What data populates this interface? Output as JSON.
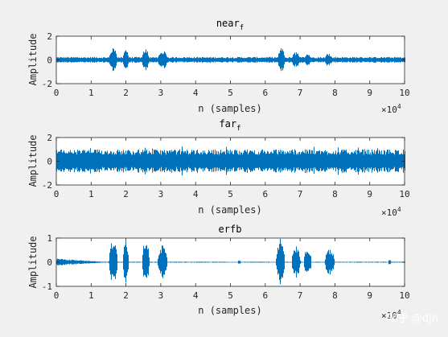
{
  "chart_data": [
    {
      "type": "line",
      "title": "near",
      "title_subscript": "f",
      "xlabel": "n (samples)",
      "ylabel": "Amplitude",
      "xlim": [
        0,
        100000
      ],
      "ylim": [
        -2,
        2
      ],
      "xticks": [
        0,
        1,
        2,
        3,
        4,
        5,
        6,
        7,
        8,
        9,
        10
      ],
      "yticks": [
        -2,
        0,
        2
      ],
      "x_exponent_base": "×10",
      "x_exponent": "4",
      "grid": false,
      "color": "#0072bd",
      "series": [
        {
          "baseline_amplitude": 0.25,
          "bursts": [
            {
              "start": 15000,
              "end": 18500,
              "peak": 1.0
            },
            {
              "start": 19000,
              "end": 21500,
              "peak": 0.9
            },
            {
              "start": 24500,
              "end": 27500,
              "peak": 1.0
            },
            {
              "start": 29000,
              "end": 33000,
              "peak": 0.8
            },
            {
              "start": 63500,
              "end": 66500,
              "peak": 1.0
            },
            {
              "start": 67500,
              "end": 71000,
              "peak": 0.7
            },
            {
              "start": 71000,
              "end": 74000,
              "peak": 0.6
            },
            {
              "start": 77000,
              "end": 80000,
              "peak": 0.6
            }
          ]
        }
      ]
    },
    {
      "type": "line",
      "title": "far",
      "title_subscript": "f",
      "xlabel": "n (samples)",
      "ylabel": "Amplitude",
      "xlim": [
        0,
        100000
      ],
      "ylim": [
        -2,
        2
      ],
      "xticks": [
        0,
        1,
        2,
        3,
        4,
        5,
        6,
        7,
        8,
        9,
        10
      ],
      "yticks": [
        -2,
        0,
        2
      ],
      "x_exponent_base": "×10",
      "x_exponent": "4",
      "grid": false,
      "color": "#0072bd",
      "series": [
        {
          "baseline_amplitude": 1.0,
          "bursts": []
        }
      ]
    },
    {
      "type": "line",
      "title": "erfb",
      "xlabel": "n (samples)",
      "ylabel": "Amplitude",
      "xlim": [
        0,
        100000
      ],
      "ylim": [
        -1,
        1
      ],
      "xticks": [
        0,
        1,
        2,
        3,
        4,
        5,
        6,
        7,
        8,
        9,
        10
      ],
      "yticks": [
        -1,
        0,
        1
      ],
      "x_exponent_base": "×10",
      "x_exponent": "4",
      "grid": false,
      "color": "#0072bd",
      "series": [
        {
          "baseline_amplitude": 0.02,
          "initial_decay": {
            "start": 0,
            "end": 15000,
            "peak": 0.15
          },
          "bursts": [
            {
              "start": 15000,
              "end": 18500,
              "peak": 1.0
            },
            {
              "start": 19000,
              "end": 21500,
              "peak": 0.9
            },
            {
              "start": 24500,
              "end": 27500,
              "peak": 0.95
            },
            {
              "start": 29000,
              "end": 33000,
              "peak": 0.7
            },
            {
              "start": 63000,
              "end": 66500,
              "peak": 1.0
            },
            {
              "start": 67500,
              "end": 71000,
              "peak": 0.7
            },
            {
              "start": 71000,
              "end": 74000,
              "peak": 0.65
            },
            {
              "start": 77000,
              "end": 81000,
              "peak": 0.55
            }
          ],
          "spikes": [
            {
              "x": 52500,
              "peak": 0.06
            },
            {
              "x": 95500,
              "peak": 0.08
            }
          ]
        }
      ]
    }
  ],
  "watermark": "知乎 @djh"
}
